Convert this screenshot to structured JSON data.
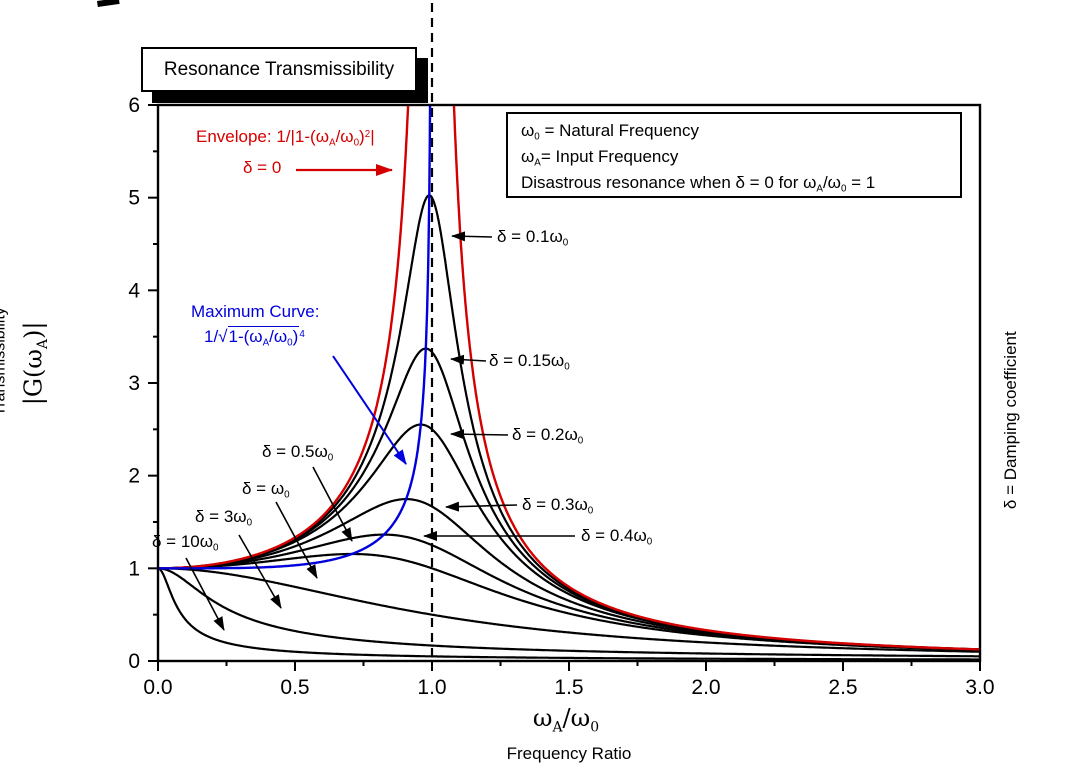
{
  "title_box": {
    "text": "Resonance Transmissibility"
  },
  "legend_box": {
    "lines": [
      "ω_{0} = Natural Frequency",
      "ω_{A}= Input Frequency",
      "Disastrous resonance when δ = 0 for ω_{A}/ω_{0} = 1"
    ]
  },
  "axes": {
    "x_title_math": "ω_{A}/ω_{0}",
    "x_title_text": "Frequency Ratio",
    "y_title_text": "Transmissibility",
    "y_title_math": "|G(ω_{A})|",
    "right_title": "δ = Damping coefficient"
  },
  "colors": {
    "black": "#000000",
    "red": "#d40000",
    "blue": "#0000dd"
  },
  "chart_data": {
    "type": "line",
    "title": "Resonance Transmissibility",
    "xlabel": "ωA/ω0 Frequency Ratio",
    "ylabel": "Transmissibility |G(ωA)|",
    "xlim": [
      0.0,
      3.0
    ],
    "ylim": [
      0,
      6
    ],
    "x_ticks": {
      "values": [
        0,
        0.5,
        1,
        1.5,
        2,
        2.5,
        3
      ],
      "labels": [
        "0.0",
        "0.5",
        "1.0",
        "1.5",
        "2.0",
        "2.5",
        "3.0"
      ],
      "minor_step": 0.25
    },
    "y_ticks": {
      "values": [
        0,
        1,
        2,
        3,
        4,
        5,
        6
      ],
      "labels": [
        "0",
        "1",
        "2",
        "3",
        "4",
        "5",
        "6"
      ],
      "minor_step": 0.5
    },
    "formula": "|G| = 1 / sqrt((1 - r^2)^2 + (2*(delta/w0)*r)^2), r = wA/w0",
    "series": [
      {
        "label": "δ = 0.1ω_{0}",
        "zeta": 0.1,
        "color": "#000000",
        "peak": {
          "r": 0.99,
          "value": 5.03
        }
      },
      {
        "label": "δ = 0.15ω_{0}",
        "zeta": 0.15,
        "color": "#000000",
        "peak": {
          "r": 0.977,
          "value": 3.37
        }
      },
      {
        "label": "δ = 0.2ω_{0}",
        "zeta": 0.2,
        "color": "#000000",
        "peak": {
          "r": 0.959,
          "value": 2.55
        }
      },
      {
        "label": "δ = 0.3ω_{0}",
        "zeta": 0.3,
        "color": "#000000",
        "peak": {
          "r": 0.906,
          "value": 1.75
        }
      },
      {
        "label": "δ = 0.4ω_{0}",
        "zeta": 0.4,
        "color": "#000000",
        "peak": {
          "r": 0.825,
          "value": 1.36
        }
      },
      {
        "label": "δ = 0.5ω_{0}",
        "zeta": 0.5,
        "color": "#000000",
        "peak": {
          "r": 0.707,
          "value": 1.15
        }
      },
      {
        "label": "δ = ω_{0}",
        "zeta": 1,
        "color": "#000000"
      },
      {
        "label": "δ = 3ω_{0}",
        "zeta": 3,
        "color": "#000000"
      },
      {
        "label": "δ = 10ω_{0}",
        "zeta": 10,
        "color": "#000000"
      }
    ],
    "envelope": {
      "label_line1": "Envelope: 1/|1-(ω_{A}/ω_{0})^{2}|",
      "label_line2": "δ = 0",
      "formula": "1/|1-r^2|",
      "color": "#d40000"
    },
    "maximum_curve": {
      "label_line1": "Maximum Curve:",
      "label_line2": "1/√~{1-(ω_{A}/ω_{0})}^{4}",
      "formula": "1/sqrt(1-r^4)",
      "color": "#0000dd"
    },
    "resonance_line": {
      "x": 1.0,
      "style": "dashed",
      "color": "#000000"
    }
  }
}
